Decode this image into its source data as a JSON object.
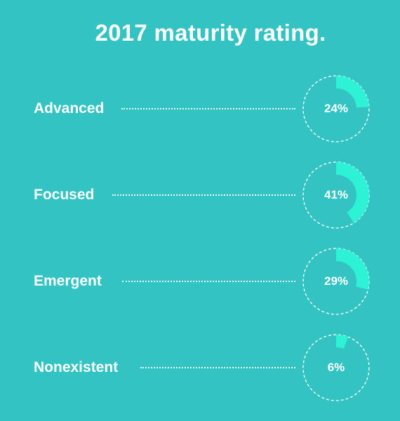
{
  "title": "2017 maturity rating.",
  "chart_data": {
    "type": "gauge",
    "title": "2017 maturity rating.",
    "categories": [
      "Advanced",
      "Focused",
      "Emergent",
      "Nonexistent"
    ],
    "values": [
      24,
      41,
      29,
      6
    ],
    "value_labels": [
      "24%",
      "41%",
      "29%",
      "6%"
    ],
    "unit": "%"
  },
  "colors": {
    "background": "#33c3c3",
    "accent": "#2ef2d6",
    "text": "#ffffff"
  }
}
